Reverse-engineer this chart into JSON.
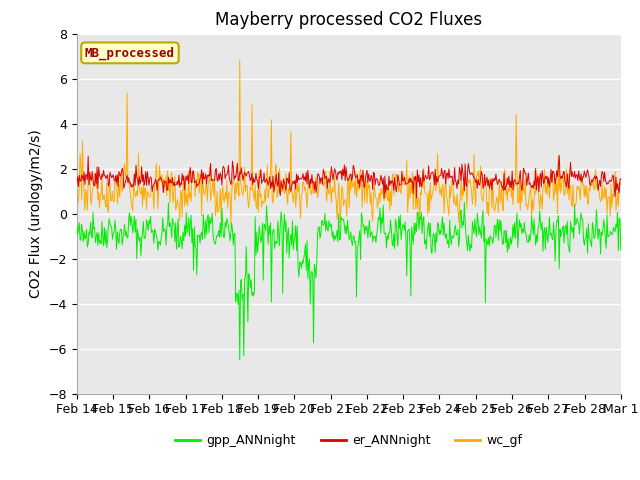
{
  "title": "Mayberry processed CO2 Fluxes",
  "ylabel": "CO2 Flux (urology/m2/s)",
  "ylim": [
    -8,
    8
  ],
  "yticks": [
    -8,
    -6,
    -4,
    -2,
    0,
    2,
    4,
    6,
    8
  ],
  "legend_label": "MB_processed",
  "legend_facecolor": "#ffffcc",
  "legend_edgecolor": "#bbaa00",
  "legend_text_color": "#990000",
  "line_gpp_color": "#00ee00",
  "line_er_color": "#dd0000",
  "line_wc_color": "#ffaa00",
  "background_color": "#e8e8e8",
  "title_fontsize": 12,
  "label_fontsize": 10,
  "tick_fontsize": 9,
  "xtick_labels": [
    "Feb 14",
    "Feb 15",
    "Feb 16",
    "Feb 17",
    "Feb 18",
    "Feb 19",
    "Feb 20",
    "Feb 21",
    "Feb 22",
    "Feb 23",
    "Feb 24",
    "Feb 25",
    "Feb 26",
    "Feb 27",
    "Feb 28",
    "Mar 1"
  ],
  "seed": 42
}
